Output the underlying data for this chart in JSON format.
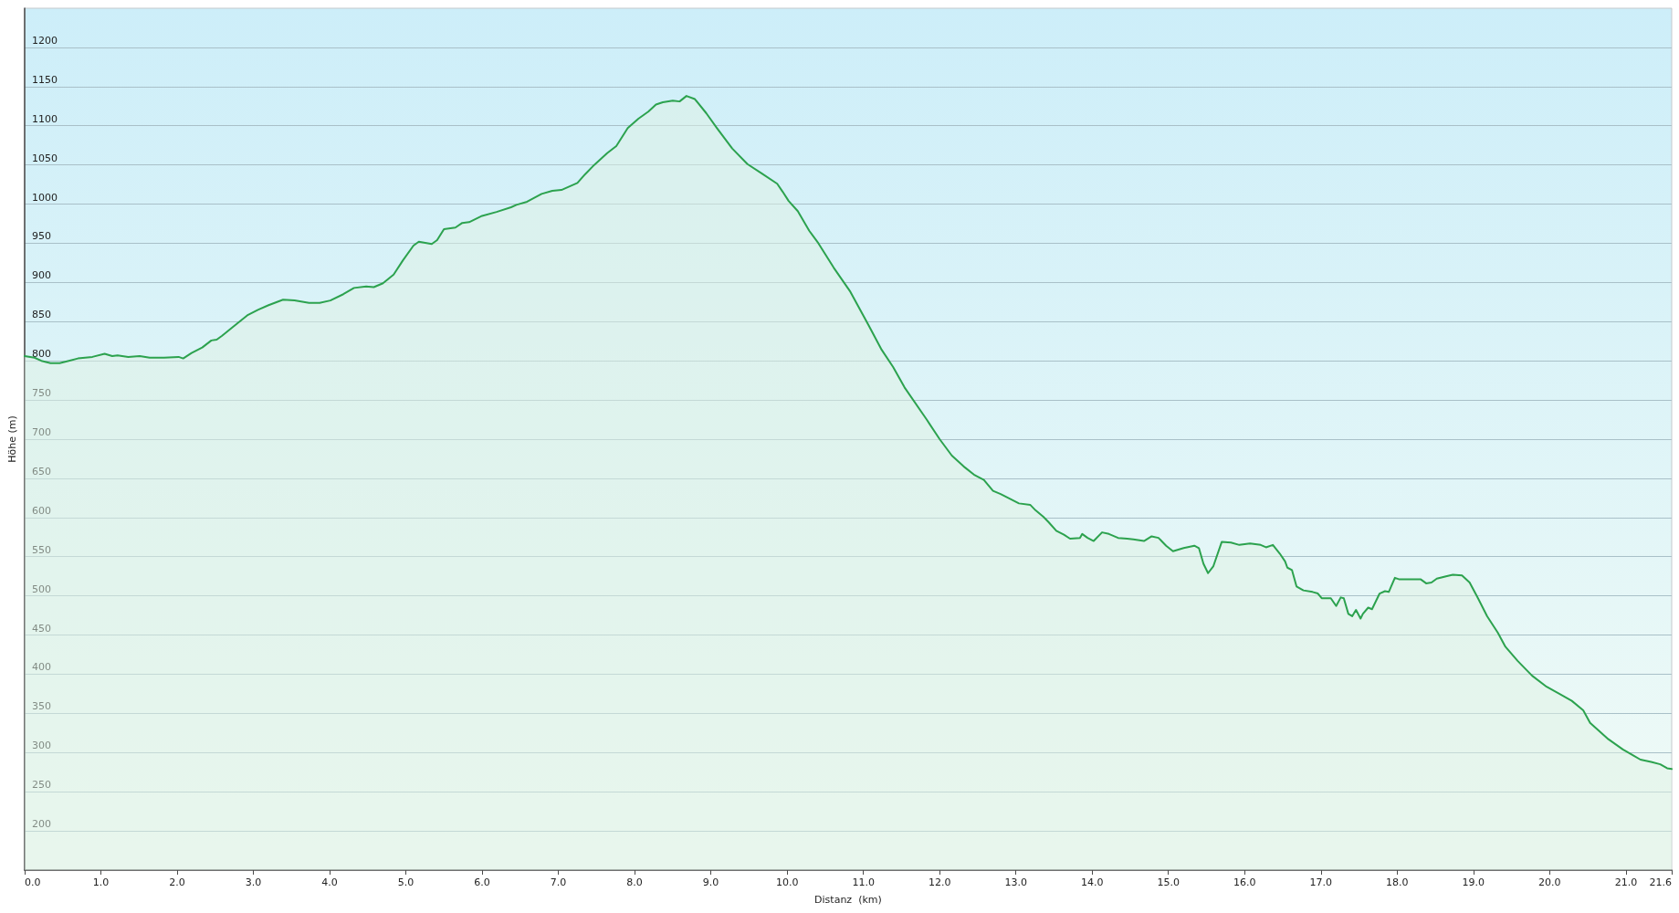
{
  "chart_data": {
    "type": "area",
    "xlabel": "Distanz  (km)",
    "ylabel": "Höhe (m)",
    "x": [
      0,
      0.13,
      0.22,
      0.34,
      0.46,
      0.58,
      0.7,
      0.89,
      1.05,
      1.15,
      1.22,
      1.36,
      1.51,
      1.64,
      1.83,
      2.02,
      2.08,
      2.19,
      2.33,
      2.45,
      2.52,
      2.59,
      2.73,
      2.92,
      3.06,
      3.2,
      3.39,
      3.54,
      3.73,
      3.87,
      4.01,
      4.18,
      4.32,
      4.48,
      4.58,
      4.7,
      4.84,
      4.96,
      5.1,
      5.17,
      5.34,
      5.41,
      5.5,
      5.65,
      5.74,
      5.83,
      6.0,
      6.19,
      6.38,
      6.45,
      6.59,
      6.78,
      6.92,
      7.04,
      7.25,
      7.35,
      7.47,
      7.64,
      7.76,
      7.91,
      8.05,
      8.18,
      8.28,
      8.37,
      8.5,
      8.59,
      8.68,
      8.79,
      8.94,
      9.08,
      9.28,
      9.48,
      9.67,
      9.87,
      9.94,
      10.02,
      10.14,
      10.29,
      10.41,
      10.61,
      10.83,
      11.07,
      11.24,
      11.39,
      11.54,
      11.83,
      12.0,
      12.16,
      12.33,
      12.46,
      12.58,
      12.7,
      12.8,
      12.9,
      13.04,
      13.19,
      13.26,
      13.36,
      13.43,
      13.53,
      13.63,
      13.71,
      13.84,
      13.87,
      13.94,
      14.02,
      14.13,
      14.22,
      14.34,
      14.46,
      14.54,
      14.68,
      14.78,
      14.87,
      14.97,
      15.06,
      15.2,
      15.34,
      15.4,
      15.46,
      15.52,
      15.59,
      15.7,
      15.82,
      15.93,
      16.07,
      16.21,
      16.28,
      16.37,
      16.46,
      16.53,
      16.56,
      16.62,
      16.68,
      16.77,
      16.89,
      16.96,
      17.01,
      17.13,
      17.2,
      17.26,
      17.3,
      17.36,
      17.41,
      17.46,
      17.52,
      17.55,
      17.62,
      17.67,
      17.77,
      17.84,
      17.89,
      17.97,
      18.03,
      18.17,
      18.31,
      18.38,
      18.45,
      18.52,
      18.64,
      18.73,
      18.85,
      18.95,
      19.06,
      19.18,
      19.32,
      19.42,
      19.58,
      19.77,
      19.96,
      20.11,
      20.2,
      20.29,
      20.44,
      20.53,
      20.77,
      20.96,
      21.1,
      21.19,
      21.33,
      21.45,
      21.54,
      21.6
    ],
    "series": [
      {
        "color": "#2ca24e",
        "values": [
          806,
          804,
          800,
          797,
          797,
          800,
          803,
          805,
          809,
          806,
          807,
          805,
          806,
          804,
          804,
          805,
          803,
          810,
          817,
          826,
          827,
          832,
          843,
          858,
          865,
          871,
          878,
          877,
          874,
          874,
          877,
          885,
          893,
          895,
          894,
          899,
          910,
          928,
          947,
          952,
          949,
          954,
          968,
          970,
          976,
          977,
          985,
          990,
          996,
          999,
          1003,
          1013,
          1017,
          1018,
          1027,
          1038,
          1050,
          1065,
          1074,
          1097,
          1109,
          1118,
          1127,
          1130,
          1132,
          1131,
          1138,
          1134,
          1116,
          1097,
          1071,
          1051,
          1039,
          1026,
          1016,
          1004,
          991,
          966,
          950,
          919,
          888,
          845,
          814,
          792,
          766,
          725,
          700,
          679,
          664,
          654,
          648,
          634,
          630,
          625,
          618,
          616,
          609,
          601,
          594,
          583,
          578,
          573,
          574,
          579,
          574,
          570,
          581,
          579,
          574,
          573,
          572,
          570,
          576,
          574,
          564,
          557,
          561,
          564,
          561,
          541,
          529,
          538,
          569,
          568,
          565,
          567,
          565,
          562,
          565,
          554,
          544,
          536,
          533,
          512,
          507,
          505,
          503,
          497,
          497,
          487,
          498,
          497,
          477,
          474,
          482,
          471,
          477,
          485,
          483,
          503,
          506,
          505,
          523,
          521,
          521,
          521,
          516,
          517,
          522,
          525,
          527,
          526,
          517,
          497,
          474,
          453,
          435,
          417,
          398,
          384,
          376,
          371,
          366,
          354,
          338,
          317,
          304,
          296,
          291,
          288,
          285,
          280,
          279
        ]
      }
    ],
    "xlim": [
      0,
      21.6
    ],
    "xticks": [
      {
        "value": 0,
        "label": "0.0"
      },
      {
        "value": 1,
        "label": "1.0"
      },
      {
        "value": 2,
        "label": "2.0"
      },
      {
        "value": 3,
        "label": "3.0"
      },
      {
        "value": 4,
        "label": "4.0"
      },
      {
        "value": 5,
        "label": "5.0"
      },
      {
        "value": 6,
        "label": "6.0"
      },
      {
        "value": 7,
        "label": "7.0"
      },
      {
        "value": 8,
        "label": "8.0"
      },
      {
        "value": 9,
        "label": "9.0"
      },
      {
        "value": 10,
        "label": "10.0"
      },
      {
        "value": 11,
        "label": "11.0"
      },
      {
        "value": 12,
        "label": "12.0"
      },
      {
        "value": 13,
        "label": "13.0"
      },
      {
        "value": 14,
        "label": "14.0"
      },
      {
        "value": 15,
        "label": "15.0"
      },
      {
        "value": 16,
        "label": "16.0"
      },
      {
        "value": 17,
        "label": "17.0"
      },
      {
        "value": 18,
        "label": "18.0"
      },
      {
        "value": 19,
        "label": "19.0"
      },
      {
        "value": 20,
        "label": "20.0"
      },
      {
        "value": 21,
        "label": "21.0"
      },
      21.6
    ],
    "ylim": [
      150,
      1250
    ],
    "yticks": [
      200,
      250,
      300,
      350,
      400,
      450,
      500,
      550,
      600,
      650,
      700,
      750,
      800,
      850,
      900,
      950,
      1000,
      1050,
      1100,
      1150,
      1200
    ],
    "grid": "y"
  }
}
